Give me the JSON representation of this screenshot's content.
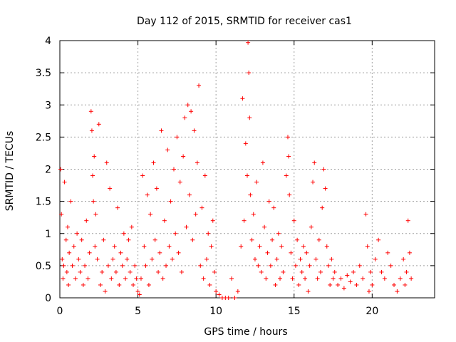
{
  "chart_data": {
    "type": "scatter",
    "title": "Day 112 of 2015, SRMTID for receiver cas1",
    "xlabel": "GPS time / hours",
    "ylabel": "SRMTID / TECUs",
    "xlim": [
      0,
      24
    ],
    "ylim": [
      0,
      4
    ],
    "xticks": [
      0,
      5,
      10,
      15,
      20
    ],
    "yticks": [
      0,
      0.5,
      1,
      1.5,
      2,
      2.5,
      3,
      3.5,
      4
    ],
    "xtick_labels": [
      "0",
      "5",
      "10",
      "15",
      "20"
    ],
    "ytick_labels": [
      "0",
      "0.5",
      "1",
      "1.5",
      "2",
      "2.5",
      "3",
      "3.5",
      "4"
    ],
    "grid": true,
    "marker": "+",
    "series": [
      {
        "name": "SRMTID",
        "color": "#ff0000",
        "points": [
          [
            0.05,
            2.0
          ],
          [
            0.1,
            1.3
          ],
          [
            0.15,
            0.6
          ],
          [
            0.2,
            0.3
          ],
          [
            0.25,
            0.5
          ],
          [
            0.3,
            1.8
          ],
          [
            0.4,
            0.9
          ],
          [
            0.45,
            0.4
          ],
          [
            0.5,
            1.1
          ],
          [
            0.55,
            0.2
          ],
          [
            0.6,
            0.7
          ],
          [
            0.7,
            1.5
          ],
          [
            0.8,
            0.5
          ],
          [
            0.9,
            0.8
          ],
          [
            1.0,
            0.3
          ],
          [
            1.1,
            1.0
          ],
          [
            1.2,
            0.6
          ],
          [
            1.3,
            0.4
          ],
          [
            1.4,
            0.9
          ],
          [
            1.5,
            0.2
          ],
          [
            1.6,
            0.5
          ],
          [
            1.7,
            1.2
          ],
          [
            1.8,
            0.3
          ],
          [
            1.9,
            0.7
          ],
          [
            2.0,
            2.9
          ],
          [
            2.05,
            2.6
          ],
          [
            2.1,
            1.9
          ],
          [
            2.15,
            1.5
          ],
          [
            2.2,
            2.2
          ],
          [
            2.25,
            0.8
          ],
          [
            2.3,
            1.3
          ],
          [
            2.4,
            0.6
          ],
          [
            2.5,
            2.7
          ],
          [
            2.6,
            0.2
          ],
          [
            2.7,
            0.4
          ],
          [
            2.8,
            0.9
          ],
          [
            2.9,
            0.1
          ],
          [
            3.0,
            2.1
          ],
          [
            3.1,
            0.5
          ],
          [
            3.2,
            1.7
          ],
          [
            3.3,
            0.3
          ],
          [
            3.4,
            0.6
          ],
          [
            3.5,
            0.8
          ],
          [
            3.6,
            0.4
          ],
          [
            3.7,
            1.4
          ],
          [
            3.8,
            0.2
          ],
          [
            3.9,
            0.7
          ],
          [
            4.0,
            0.5
          ],
          [
            4.1,
            1.0
          ],
          [
            4.2,
            0.3
          ],
          [
            4.3,
            0.6
          ],
          [
            4.4,
            0.9
          ],
          [
            4.5,
            0.4
          ],
          [
            4.6,
            1.1
          ],
          [
            4.7,
            0.2
          ],
          [
            4.8,
            0.5
          ],
          [
            4.9,
            0.3
          ],
          [
            5.0,
            0.1
          ],
          [
            5.1,
            0.05
          ],
          [
            5.2,
            0.3
          ],
          [
            5.3,
            1.9
          ],
          [
            5.4,
            0.8
          ],
          [
            5.5,
            0.5
          ],
          [
            5.6,
            1.6
          ],
          [
            5.7,
            0.2
          ],
          [
            5.8,
            1.3
          ],
          [
            5.9,
            0.6
          ],
          [
            6.0,
            2.1
          ],
          [
            6.1,
            0.9
          ],
          [
            6.2,
            1.7
          ],
          [
            6.3,
            0.4
          ],
          [
            6.4,
            0.7
          ],
          [
            6.5,
            2.6
          ],
          [
            6.6,
            0.3
          ],
          [
            6.7,
            1.2
          ],
          [
            6.8,
            0.5
          ],
          [
            6.9,
            2.3
          ],
          [
            7.0,
            0.8
          ],
          [
            7.1,
            1.5
          ],
          [
            7.2,
            0.6
          ],
          [
            7.3,
            2.0
          ],
          [
            7.4,
            1.0
          ],
          [
            7.5,
            2.5
          ],
          [
            7.6,
            0.7
          ],
          [
            7.7,
            1.8
          ],
          [
            7.8,
            0.4
          ],
          [
            7.9,
            2.2
          ],
          [
            8.0,
            2.8
          ],
          [
            8.1,
            1.1
          ],
          [
            8.2,
            3.0
          ],
          [
            8.3,
            1.6
          ],
          [
            8.4,
            2.9
          ],
          [
            8.5,
            0.9
          ],
          [
            8.6,
            2.6
          ],
          [
            8.7,
            1.3
          ],
          [
            8.8,
            2.1
          ],
          [
            8.9,
            3.3
          ],
          [
            9.0,
            0.5
          ],
          [
            9.1,
            1.4
          ],
          [
            9.2,
            0.3
          ],
          [
            9.3,
            1.9
          ],
          [
            9.4,
            0.6
          ],
          [
            9.5,
            1.0
          ],
          [
            9.6,
            0.2
          ],
          [
            9.7,
            0.8
          ],
          [
            9.8,
            1.2
          ],
          [
            9.9,
            0.4
          ],
          [
            10.0,
            0.1
          ],
          [
            10.2,
            0.05
          ],
          [
            10.4,
            0.0
          ],
          [
            10.6,
            0.0
          ],
          [
            10.8,
            0.0
          ],
          [
            11.0,
            0.3
          ],
          [
            11.2,
            0.0
          ],
          [
            11.4,
            0.1
          ],
          [
            11.6,
            0.8
          ],
          [
            11.7,
            3.1
          ],
          [
            11.8,
            1.2
          ],
          [
            11.9,
            2.4
          ],
          [
            12.0,
            1.9
          ],
          [
            12.05,
            3.97
          ],
          [
            12.1,
            3.5
          ],
          [
            12.15,
            2.8
          ],
          [
            12.2,
            1.6
          ],
          [
            12.3,
            0.9
          ],
          [
            12.4,
            1.3
          ],
          [
            12.5,
            0.6
          ],
          [
            12.6,
            1.8
          ],
          [
            12.7,
            0.5
          ],
          [
            12.8,
            0.8
          ],
          [
            12.9,
            0.4
          ],
          [
            13.0,
            2.1
          ],
          [
            13.1,
            1.1
          ],
          [
            13.2,
            0.3
          ],
          [
            13.3,
            0.7
          ],
          [
            13.4,
            1.5
          ],
          [
            13.5,
            0.5
          ],
          [
            13.6,
            0.9
          ],
          [
            13.7,
            1.4
          ],
          [
            13.8,
            0.2
          ],
          [
            13.9,
            0.6
          ],
          [
            14.0,
            1.0
          ],
          [
            14.1,
            0.3
          ],
          [
            14.2,
            0.8
          ],
          [
            14.3,
            0.4
          ],
          [
            14.5,
            1.9
          ],
          [
            14.6,
            2.5
          ],
          [
            14.65,
            2.2
          ],
          [
            14.7,
            1.6
          ],
          [
            14.8,
            0.7
          ],
          [
            14.9,
            0.3
          ],
          [
            15.0,
            1.2
          ],
          [
            15.1,
            0.5
          ],
          [
            15.2,
            0.9
          ],
          [
            15.3,
            0.2
          ],
          [
            15.4,
            0.6
          ],
          [
            15.5,
            0.4
          ],
          [
            15.6,
            0.8
          ],
          [
            15.7,
            0.3
          ],
          [
            15.8,
            0.7
          ],
          [
            15.9,
            0.1
          ],
          [
            16.0,
            0.5
          ],
          [
            16.1,
            1.1
          ],
          [
            16.2,
            1.8
          ],
          [
            16.3,
            2.1
          ],
          [
            16.4,
            0.6
          ],
          [
            16.5,
            0.3
          ],
          [
            16.6,
            0.9
          ],
          [
            16.7,
            0.4
          ],
          [
            16.8,
            1.4
          ],
          [
            16.9,
            2.0
          ],
          [
            17.0,
            1.7
          ],
          [
            17.1,
            0.8
          ],
          [
            17.2,
            0.5
          ],
          [
            17.3,
            0.2
          ],
          [
            17.4,
            0.6
          ],
          [
            17.5,
            0.3
          ],
          [
            17.6,
            0.4
          ],
          [
            17.8,
            0.2
          ],
          [
            18.0,
            0.3
          ],
          [
            18.2,
            0.15
          ],
          [
            18.4,
            0.35
          ],
          [
            18.6,
            0.25
          ],
          [
            18.8,
            0.4
          ],
          [
            19.0,
            0.2
          ],
          [
            19.2,
            0.5
          ],
          [
            19.4,
            0.3
          ],
          [
            19.6,
            1.3
          ],
          [
            19.7,
            0.8
          ],
          [
            19.8,
            0.1
          ],
          [
            19.9,
            0.4
          ],
          [
            20.0,
            0.2
          ],
          [
            20.2,
            0.6
          ],
          [
            20.4,
            0.9
          ],
          [
            20.6,
            0.4
          ],
          [
            20.8,
            0.3
          ],
          [
            21.0,
            0.7
          ],
          [
            21.2,
            0.5
          ],
          [
            21.4,
            0.2
          ],
          [
            21.6,
            0.1
          ],
          [
            21.8,
            0.3
          ],
          [
            22.0,
            0.6
          ],
          [
            22.1,
            0.2
          ],
          [
            22.2,
            0.4
          ],
          [
            22.3,
            1.2
          ],
          [
            22.4,
            0.7
          ],
          [
            22.5,
            0.3
          ]
        ]
      }
    ]
  }
}
